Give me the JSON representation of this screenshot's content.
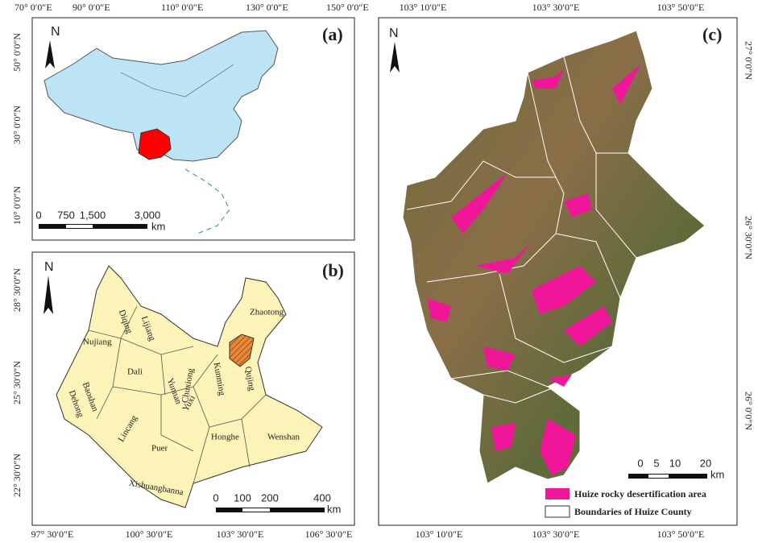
{
  "panels": [
    {
      "label": "(a)",
      "north": "N",
      "top_labels": [
        "70° 0′0″E",
        "90° 0′0″E",
        "110° 0′0″E",
        "130° 0′0″E",
        "150° 0′0″E"
      ],
      "left_labels": [
        "50° 0′0″N",
        "30° 0′0″N",
        "10° 0′0″N"
      ],
      "scale_labels": [
        "0",
        "750",
        "1,500",
        "3,000"
      ],
      "scale_unit": "km"
    },
    {
      "label": "(b)",
      "north": "N",
      "left_labels": [
        "28° 30′0″N",
        "25° 30′0″N",
        "22° 30′0″N"
      ],
      "bottom_labels": [
        "97° 30′0″E",
        "100° 30′0″E",
        "103° 30′0″E",
        "106° 30′0″E"
      ],
      "places": [
        "Diqing",
        "Lijiang",
        "Nujiang",
        "Dali",
        "Baoshan",
        "Dehong",
        "Lincang",
        "Puer",
        "Xishuangbanna",
        "Yunnan",
        "Chuxiong",
        "Yuxi",
        "Kunming",
        "Qujing",
        "Zhaotong",
        "Honghe",
        "Wenshan"
      ],
      "scale_labels": [
        "0",
        "100",
        "200",
        "400"
      ],
      "scale_unit": "km"
    },
    {
      "label": "(c)",
      "north": "N",
      "top_labels": [
        "103° 10′0″E",
        "103° 30′0″E",
        "103° 50′0″E"
      ],
      "bottom_labels": [
        "103° 10′0″E",
        "103° 30′0″E",
        "103° 50′0″E"
      ],
      "right_labels": [
        "27° 0′0″N",
        "26° 30′0″N",
        "26° 0′0″N"
      ],
      "scale_labels": [
        "0",
        "5",
        "10",
        "20"
      ],
      "scale_unit": "km",
      "legend": [
        "Huize rocky desertification area",
        "Boundaries of Huize County"
      ]
    }
  ]
}
